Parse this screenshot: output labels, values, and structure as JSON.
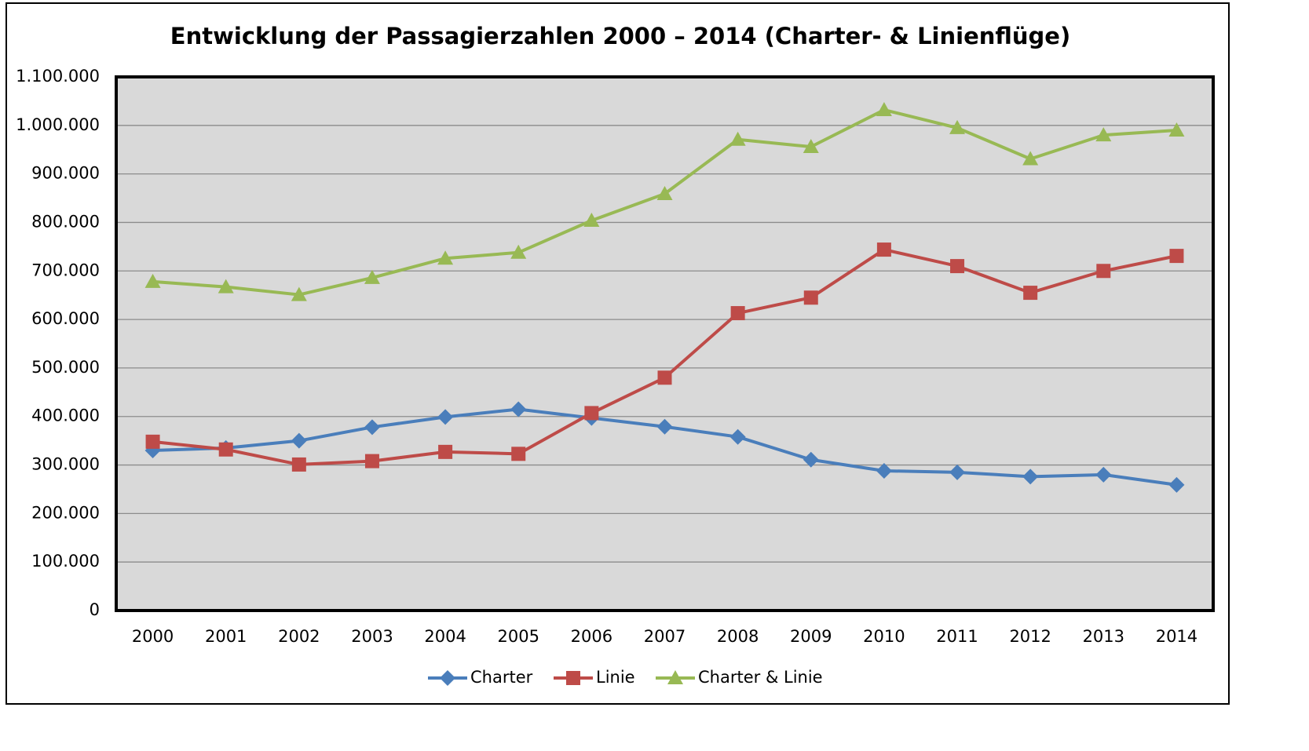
{
  "chart_data": {
    "type": "line",
    "title": "Entwicklung der Passagierzahlen 2000 – 2014 (Charter- & Linienflüge)",
    "categories": [
      "2000",
      "2001",
      "2002",
      "2003",
      "2004",
      "2005",
      "2006",
      "2007",
      "2008",
      "2009",
      "2010",
      "2011",
      "2012",
      "2013",
      "2014"
    ],
    "series": [
      {
        "name": "Charter",
        "color": "#4a7ebb",
        "marker": "diamond",
        "values": [
          330000,
          335000,
          350000,
          378000,
          399000,
          415000,
          397000,
          379000,
          358000,
          311000,
          288000,
          285000,
          276000,
          280000,
          259000
        ]
      },
      {
        "name": "Linie",
        "color": "#be4b48",
        "marker": "square",
        "values": [
          348000,
          332000,
          301000,
          308000,
          327000,
          323000,
          407000,
          480000,
          613000,
          645000,
          744000,
          710000,
          655000,
          700000,
          731000
        ]
      },
      {
        "name": "Charter & Linie",
        "color": "#98b954",
        "marker": "triangle",
        "values": [
          678000,
          667000,
          651000,
          686000,
          726000,
          738000,
          804000,
          859000,
          971000,
          956000,
          1032000,
          995000,
          931000,
          980000,
          990000
        ]
      }
    ],
    "ylim": [
      0,
      1100000
    ],
    "yticks": [
      0,
      {
        "value": 100000,
        "label": "100.000"
      },
      {
        "value": 200000,
        "label": "200.000"
      },
      {
        "value": 300000,
        "label": "300.000"
      },
      {
        "value": 400000,
        "label": "400.000"
      },
      {
        "value": 500000,
        "label": "500.000"
      },
      {
        "value": 600000,
        "label": "600.000"
      },
      {
        "value": 700000,
        "label": "700.000"
      },
      {
        "value": 800000,
        "label": "800.000"
      },
      {
        "value": 900000,
        "label": "900.000"
      },
      {
        "value": 1000000,
        "label": "1.000.000"
      },
      {
        "value": 1100000,
        "label": "1.100.000"
      }
    ],
    "grid": true,
    "legend": "bottom"
  }
}
